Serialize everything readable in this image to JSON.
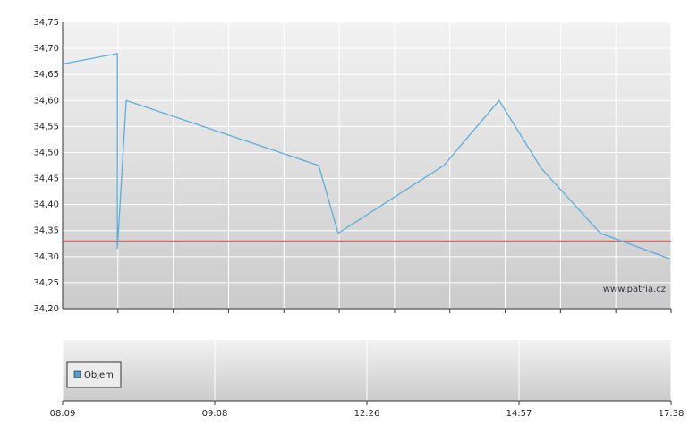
{
  "chart_data": {
    "type": "line",
    "watermark": "www.patria.cz",
    "series": [
      {
        "name": null,
        "color": "#5aaedb",
        "x": [
          0,
          0.99,
          0.99,
          1.15,
          4.63,
          4.98,
          6.89,
          7.89,
          8.65,
          9.72,
          11
        ],
        "values": [
          34.67,
          34.69,
          34.315,
          34.6,
          34.475,
          34.345,
          34.475,
          34.6,
          34.47,
          34.345,
          34.295
        ]
      }
    ],
    "reference_line": {
      "value": 34.33,
      "color": "#e0625a"
    },
    "xlim": [
      0,
      11
    ],
    "xgrid": [
      1,
      2,
      3,
      4,
      5,
      6,
      7,
      8,
      9,
      10,
      11
    ],
    "xticks": [
      {
        "value": 0,
        "label": "08:09"
      },
      {
        "value": 2.75,
        "label": "09:08"
      },
      {
        "value": 5.5,
        "label": "12:26"
      },
      {
        "value": 8.25,
        "label": "14:57"
      },
      {
        "value": 11,
        "label": "17:38"
      }
    ],
    "ylim": [
      34.2,
      34.75
    ],
    "yticks": [
      {
        "value": 34.2,
        "label": "34,20"
      },
      {
        "value": 34.25,
        "label": "34,25"
      },
      {
        "value": 34.3,
        "label": "34,30"
      },
      {
        "value": 34.35,
        "label": "34,35"
      },
      {
        "value": 34.4,
        "label": "34,40"
      },
      {
        "value": 34.45,
        "label": "34,45"
      },
      {
        "value": 34.5,
        "label": "34,50"
      },
      {
        "value": 34.55,
        "label": "34,55"
      },
      {
        "value": 34.6,
        "label": "34,60"
      },
      {
        "value": 34.65,
        "label": "34,65"
      },
      {
        "value": 34.7,
        "label": "34,70"
      },
      {
        "value": 34.75,
        "label": "34,75"
      }
    ],
    "grid": true,
    "volume_legend": {
      "name": "Objem",
      "color": "#4f9fd0"
    }
  }
}
